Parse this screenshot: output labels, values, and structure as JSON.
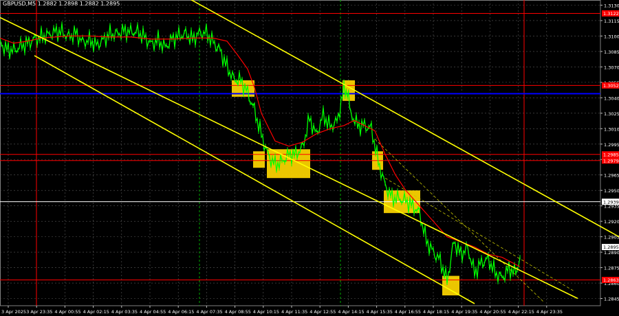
{
  "chart_data": {
    "type": "line",
    "title": "GBPUSD,M5  1.2882 1.2898 1.2882 1.2895",
    "xlabel": "",
    "ylabel": "",
    "ylim": [
      1.2838,
      1.3135
    ],
    "grid": true,
    "background": "#000000",
    "x_ticks": [
      "3 Apr 2025",
      "3 Apr 23:35",
      "4 Apr 00:55",
      "4 Apr 02:15",
      "4 Apr 03:35",
      "4 Apr 04:55",
      "4 Apr 06:15",
      "4 Apr 07:35",
      "4 Apr 08:55",
      "4 Apr 10:15",
      "4 Apr 11:35",
      "4 Apr 12:55",
      "4 Apr 14:15",
      "4 Apr 15:35",
      "4 Apr 16:55",
      "4 Apr 18:15",
      "4 Apr 19:35",
      "4 Apr 20:55",
      "4 Apr 22:15",
      "4 Apr 23:35"
    ],
    "y_ticks": [
      1.313,
      1.3115,
      1.31,
      1.3085,
      1.307,
      1.3055,
      1.304,
      1.3025,
      1.301,
      1.2995,
      1.298,
      1.2965,
      1.295,
      1.2935,
      1.292,
      1.2905,
      1.289,
      1.2875,
      1.286,
      1.2845
    ],
    "price_series": {
      "name": "GBPUSD,M5",
      "color": "#00ff00",
      "x": [
        0,
        10,
        20,
        30,
        40,
        50,
        60,
        70,
        80,
        90,
        100,
        110,
        120,
        130,
        140,
        150,
        160,
        170,
        180,
        190,
        200,
        210,
        220,
        230,
        240,
        250,
        260,
        270,
        280,
        290,
        300,
        310,
        320,
        330,
        340,
        350,
        360,
        370,
        380,
        390,
        400,
        410,
        420,
        430,
        440,
        450,
        460,
        470,
        480,
        490,
        500,
        505,
        510,
        520,
        530,
        540,
        550,
        560,
        570,
        580,
        590,
        600,
        610,
        620,
        630,
        640,
        650,
        660,
        670,
        680,
        690,
        700,
        710,
        720,
        730,
        740,
        750,
        756
      ],
      "y": [
        1.3093,
        1.3087,
        1.3086,
        1.309,
        1.3093,
        1.3097,
        1.3099,
        1.3101,
        1.3104,
        1.3104,
        1.3099,
        1.3103,
        1.3094,
        1.3096,
        1.3091,
        1.3096,
        1.3102,
        1.3102,
        1.3105,
        1.3104,
        1.3104,
        1.3099,
        1.3092,
        1.3096,
        1.3089,
        1.3097,
        1.31,
        1.3102,
        1.3097,
        1.3103,
        1.3103,
        1.3094,
        1.3086,
        1.307,
        1.3058,
        1.3057,
        1.3045,
        1.3028,
        1.3004,
        1.2984,
        1.2975,
        1.2978,
        1.2985,
        1.2985,
        1.2992,
        1.302,
        1.3004,
        1.3023,
        1.3012,
        1.3017,
        1.3048,
        1.3047,
        1.3025,
        1.3013,
        1.3013,
        1.301,
        1.2978,
        1.2955,
        1.2943,
        1.2942,
        1.294,
        1.2935,
        1.2928,
        1.2901,
        1.289,
        1.2882,
        1.2862,
        1.29,
        1.2888,
        1.2894,
        1.287,
        1.288,
        1.2883,
        1.287,
        1.2865,
        1.2874,
        1.287,
        1.2885
      ]
    },
    "ma_series": {
      "name": "",
      "color": "#ff0000",
      "x": [
        0,
        20,
        40,
        60,
        80,
        100,
        130,
        160,
        190,
        220,
        250,
        280,
        310,
        330,
        345,
        360,
        370,
        380,
        400,
        420,
        440,
        460,
        480,
        500,
        515,
        530,
        545,
        560,
        575,
        590,
        610,
        630,
        650,
        670,
        690,
        710,
        730,
        750,
        756
      ],
      "y": [
        1.3098,
        1.3093,
        1.3095,
        1.3098,
        1.3099,
        1.31,
        1.31,
        1.3099,
        1.3099,
        1.3097,
        1.3097,
        1.3098,
        1.3098,
        1.3095,
        1.3082,
        1.3068,
        1.305,
        1.3025,
        1.2998,
        1.2993,
        1.2997,
        1.3005,
        1.301,
        1.3013,
        1.3018,
        1.3013,
        1.3008,
        1.2985,
        1.2965,
        1.295,
        1.2935,
        1.292,
        1.2905,
        1.29,
        1.2895,
        1.2888,
        1.2885,
        1.2878,
        1.2876
      ]
    },
    "horizontal_levels": [
      {
        "value": 1.3122,
        "color": "#ff0000",
        "label": "1.3122"
      },
      {
        "value": 1.3052,
        "color": "#ff0000",
        "label": "1.3052"
      },
      {
        "value": 1.3044,
        "color": "#0000ff",
        "label": ""
      },
      {
        "value": 1.2985,
        "color": "#ff0000",
        "label": "1.2985"
      },
      {
        "value": 1.2979,
        "color": "#ff0000",
        "label": "1.2979"
      },
      {
        "value": 1.2939,
        "color": "#ffffff",
        "label": "1.2939"
      },
      {
        "value": 1.2863,
        "color": "#ff0000",
        "label": "1.2863"
      }
    ],
    "current_price_label": "1.2895",
    "current_price": 1.2895,
    "channel_lines": [
      {
        "x1": 265,
        "y1": 1.314,
        "x2": 900,
        "y2": 1.2905,
        "color": "#ffff00"
      },
      {
        "x1": 0,
        "y1": 1.3118,
        "x2": 840,
        "y2": 1.2845,
        "color": "#ffff00"
      },
      {
        "x1": 50,
        "y1": 1.3081,
        "x2": 690,
        "y2": 1.284,
        "color": "#ffff00"
      }
    ],
    "dashed_channel_lines": [
      {
        "x1": 545,
        "y1": 1.3,
        "x2": 790,
        "y2": 1.2842,
        "color": "#c8c800"
      },
      {
        "x1": 560,
        "y1": 1.2962,
        "x2": 835,
        "y2": 1.2852,
        "color": "#c8c800"
      }
    ],
    "vertical_markers": [
      {
        "x": 53,
        "color": "#ff0000",
        "style": "solid"
      },
      {
        "x": 290,
        "color": "#00aa00",
        "style": "dashed"
      },
      {
        "x": 495,
        "color": "#00aa00",
        "style": "dashed"
      },
      {
        "x": 762,
        "color": "#ff0000",
        "style": "solid"
      }
    ],
    "highlight_boxes": [
      {
        "x": 337,
        "w": 33,
        "y_top": 1.3057,
        "y_bottom": 1.3041,
        "color": "#ffd700"
      },
      {
        "x": 368,
        "w": 17,
        "y_top": 1.2988,
        "y_bottom": 1.2972,
        "color": "#ffd700"
      },
      {
        "x": 388,
        "w": 63,
        "y_top": 1.299,
        "y_bottom": 1.2962,
        "color": "#ffd700"
      },
      {
        "x": 498,
        "w": 18,
        "y_top": 1.3057,
        "y_bottom": 1.3037,
        "color": "#ffd700"
      },
      {
        "x": 541,
        "w": 16,
        "y_top": 1.2988,
        "y_bottom": 1.297,
        "color": "#ffd700"
      },
      {
        "x": 558,
        "w": 53,
        "y_top": 1.295,
        "y_bottom": 1.2928,
        "color": "#ffd700"
      },
      {
        "x": 643,
        "w": 25,
        "y_top": 1.2867,
        "y_bottom": 1.2848,
        "color": "#ffd700"
      }
    ]
  }
}
